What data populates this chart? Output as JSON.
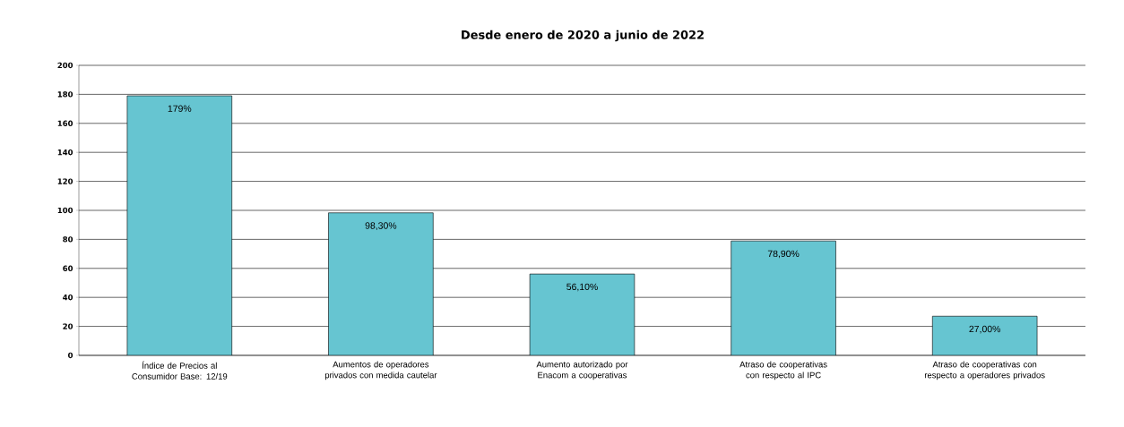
{
  "chart_data": {
    "type": "bar",
    "title": "Desde enero de 2020 a junio de 2022",
    "categories": [
      "Índice de Precios al Consumidor Base: 12/19",
      "Aumentos de operadores privados con medida cautelar",
      "Aumento autorizado por Enacom a cooperativas",
      "Atraso de cooperativas con respecto al IPC",
      "Atraso de cooperativas con respecto a operadores privados"
    ],
    "values": [
      179,
      98.3,
      56.1,
      78.9,
      27.0
    ],
    "value_labels": [
      "179%",
      "98,30%",
      "56,10%",
      "78,90%",
      "27,00%"
    ],
    "color": "#66c5d1",
    "ylim": [
      0,
      200
    ],
    "yticks": [
      0,
      20,
      40,
      60,
      80,
      100,
      120,
      140,
      160,
      180,
      200
    ],
    "grid": "y"
  }
}
